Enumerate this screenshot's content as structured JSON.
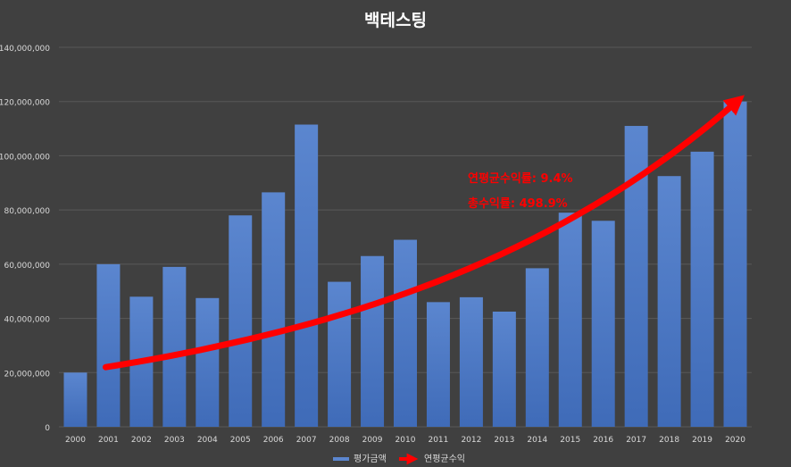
{
  "chart_data": {
    "type": "bar",
    "title": "백테스팅",
    "categories": [
      "2000",
      "2001",
      "2002",
      "2003",
      "2004",
      "2005",
      "2006",
      "2007",
      "2008",
      "2009",
      "2010",
      "2011",
      "2012",
      "2013",
      "2014",
      "2015",
      "2016",
      "2017",
      "2018",
      "2019",
      "2020"
    ],
    "series": [
      {
        "name": "평가금액",
        "values": [
          20000000,
          60000000,
          48000000,
          59000000,
          47500000,
          78000000,
          86500000,
          111500000,
          53500000,
          63000000,
          69000000,
          46000000,
          47800000,
          42500000,
          58500000,
          79000000,
          76000000,
          111000000,
          92500000,
          101500000,
          120000000
        ]
      }
    ],
    "trend_series_name": "연평균수익",
    "ylim": [
      0,
      140000000
    ],
    "yticks": [
      "0",
      "20,000,000",
      "40,000,000",
      "60,000,000",
      "80,000,000",
      "100,000,000",
      "120,000,000",
      "140,000,000"
    ],
    "grid": true,
    "legend_position": "bottom",
    "annotations": {
      "cagr": "연평균수익률: 9.4%",
      "total_return": "총수익률: 498.9%"
    },
    "colors": {
      "background": "#404040",
      "bar_top": "#5b86cf",
      "bar_bottom": "#3f6bb8",
      "trend": "#ff0000",
      "grid": "#595959",
      "text": "#d9d9d9",
      "title": "#ffffff",
      "annotation": "#ff0000"
    }
  }
}
